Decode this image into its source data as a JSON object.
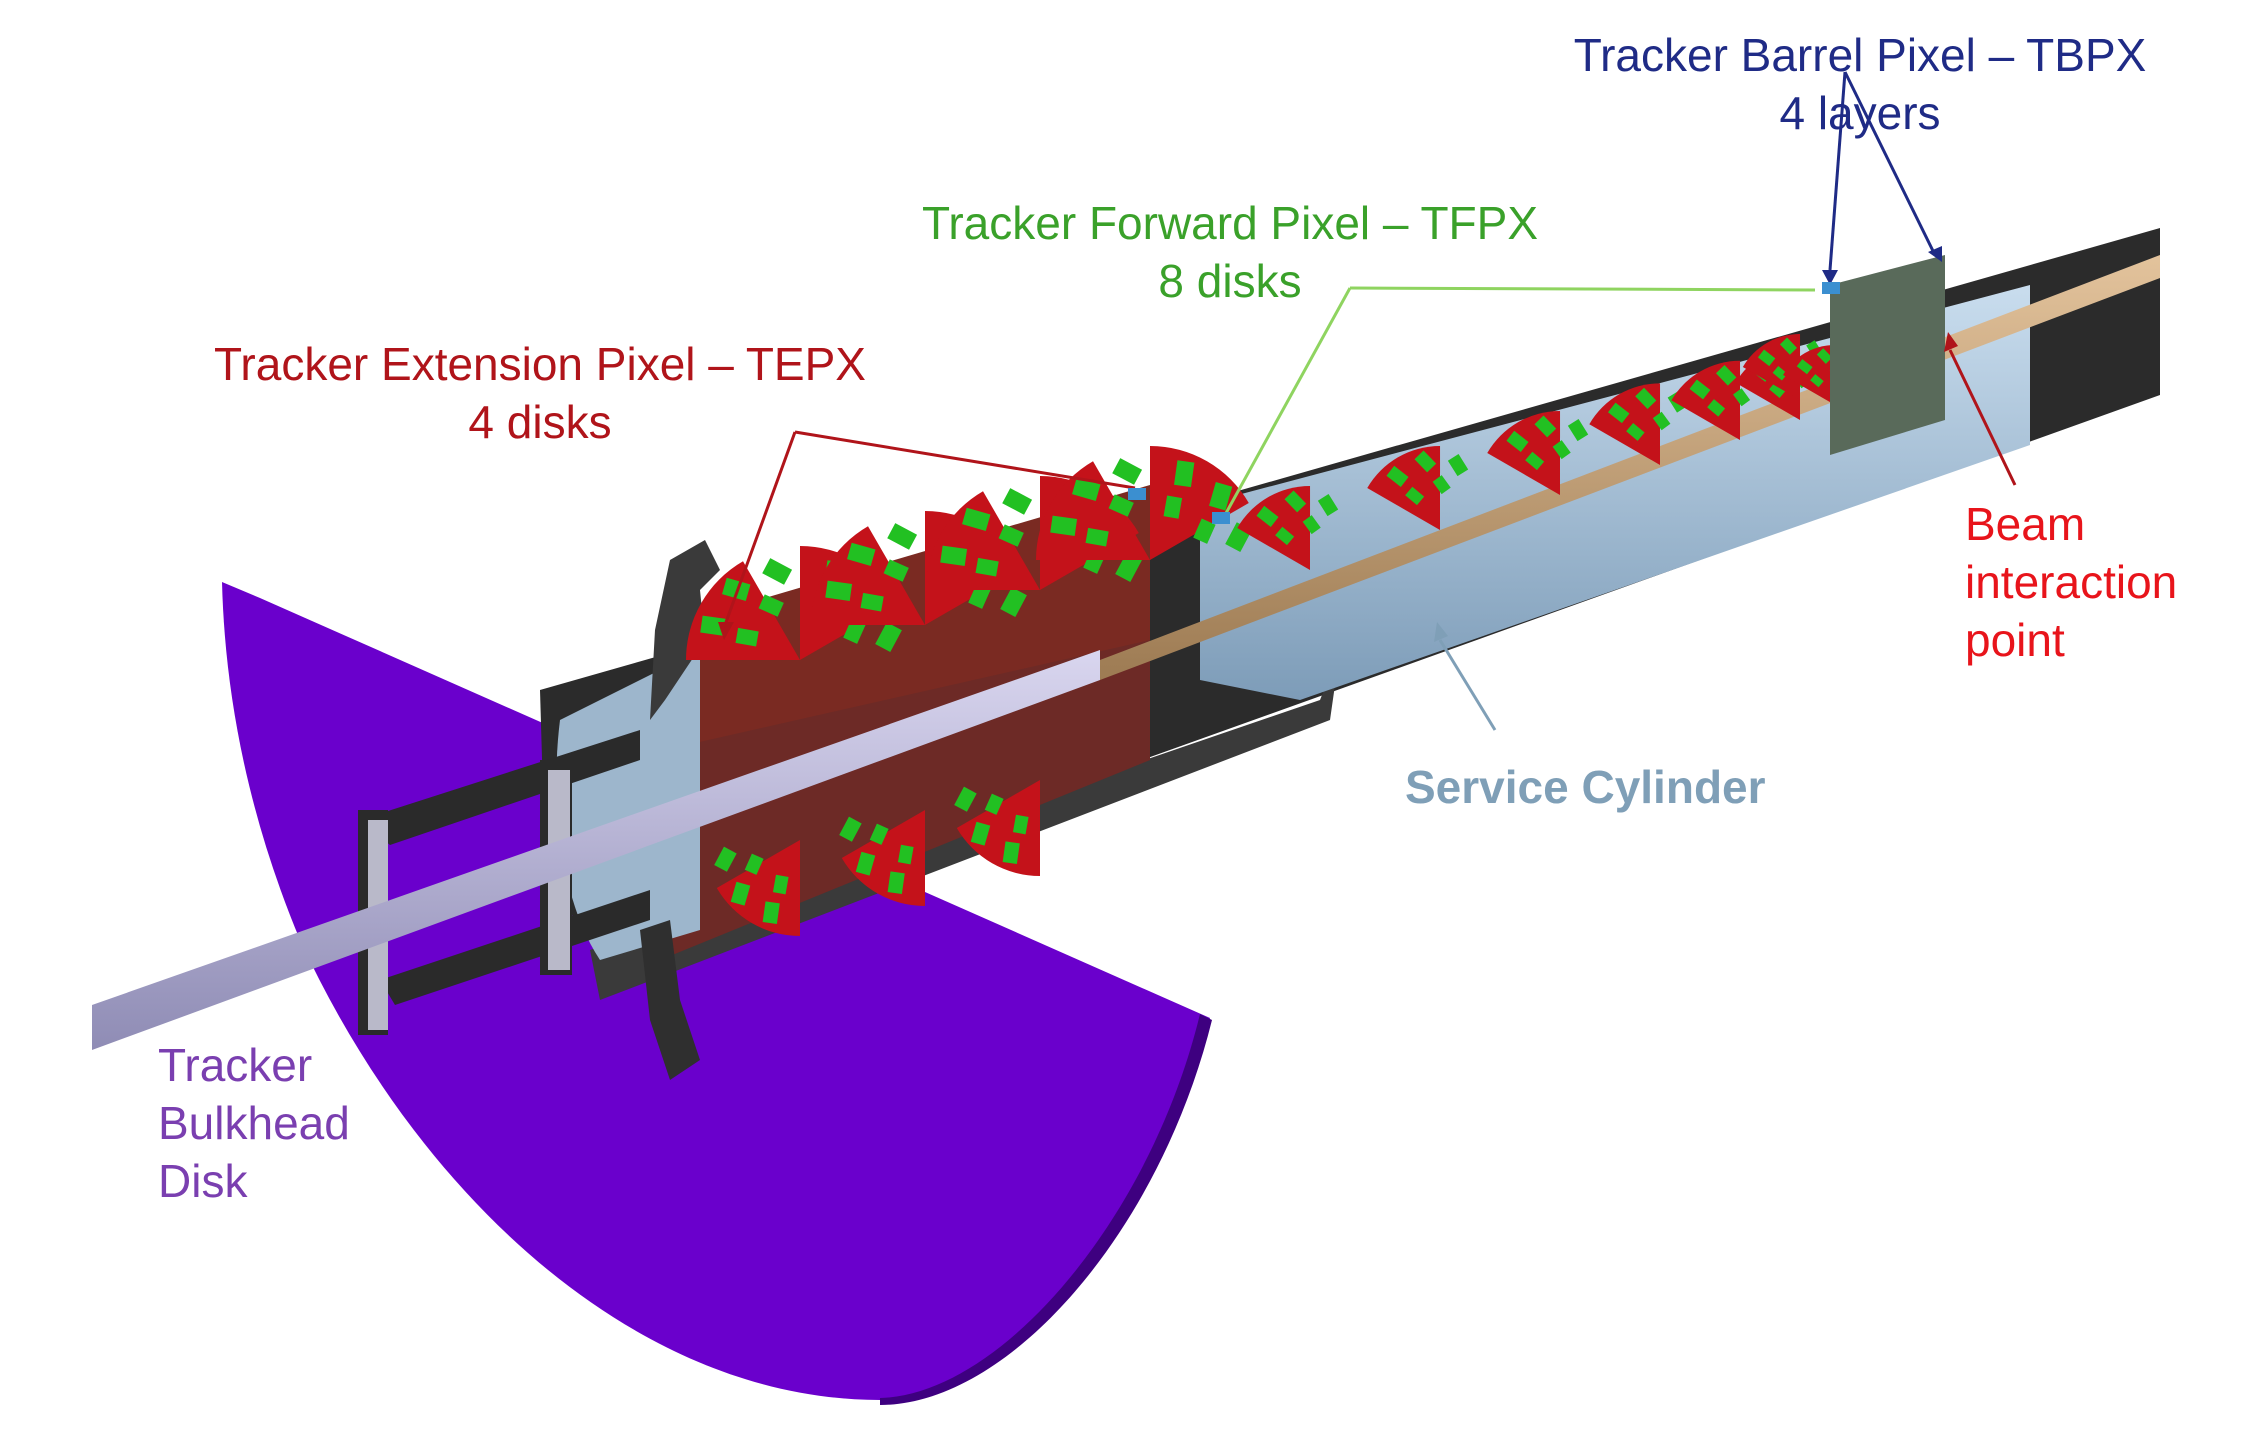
{
  "labels": {
    "tbpx_title": "Tracker Barrel Pixel – TBPX",
    "tbpx_sub": "4 layers",
    "tfpx_title": "Tracker Forward Pixel – TFPX",
    "tfpx_sub": "8 disks",
    "tepx_title": "Tracker Extension Pixel – TEPX",
    "tepx_sub": "4 disks",
    "beam_line1": "Beam",
    "beam_line2": "interaction",
    "beam_line3": "point",
    "service": "Service Cylinder",
    "bulkhead_line1": "Tracker",
    "bulkhead_line2": "Bulkhead",
    "bulkhead_line3": "Disk"
  },
  "colors": {
    "tbpx": "#1f2b86",
    "tfpx": "#3aa12a",
    "tepx": "#b0141a",
    "beam": "#e8141b",
    "service": "#7f9fb7",
    "bulkhead": "#6a00cc",
    "cylinder": "#2b2b2b",
    "beampipe": "#c9a57a",
    "module_green": "#22c022",
    "module_red": "#c4121a"
  }
}
